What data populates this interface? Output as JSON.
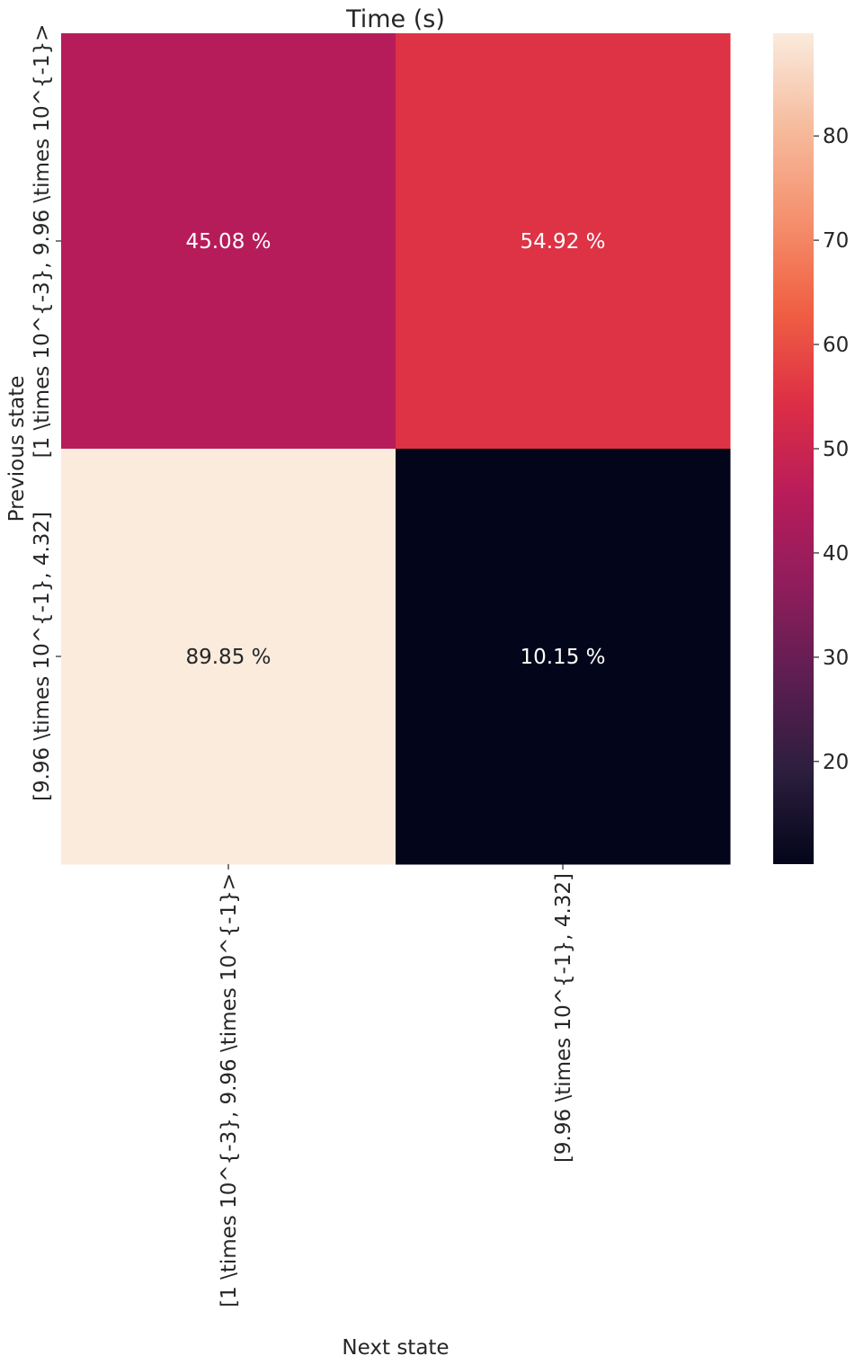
{
  "chart_data": {
    "type": "heatmap",
    "title": "Time (s)",
    "xlabel": "Next state",
    "ylabel": "Previous state",
    "x_categories": [
      "[1 \\times 10^{-3}, 9.96 \\times 10^{-1}>",
      "[9.96 \\times 10^{-1}, 4.32]"
    ],
    "y_categories": [
      "[1 \\times 10^{-3}, 9.96 \\times 10^{-1}>",
      "[9.96 \\times 10^{-1}, 4.32]"
    ],
    "values": [
      [
        45.08,
        54.92
      ],
      [
        89.85,
        10.15
      ]
    ],
    "cell_labels": [
      [
        "45.08 %",
        "54.92 %"
      ],
      [
        "89.85 %",
        "10.15 %"
      ]
    ],
    "colorbar": {
      "min": 10.15,
      "max": 89.85,
      "ticks": [
        20,
        30,
        40,
        50,
        60,
        70,
        80
      ],
      "tick_labels": [
        "20",
        "30",
        "40",
        "50",
        "60",
        "70",
        "80"
      ]
    },
    "colormap": "rocket",
    "colors": {
      "rocket_stops": [
        "#03051a",
        "#2c1e3e",
        "#5c1e51",
        "#8f1d5c",
        "#b81c5a",
        "#dd2f45",
        "#f06043",
        "#f5916e",
        "#f6bc9e",
        "#faebdd"
      ],
      "light_text": "#ffffff",
      "dark_text": "#262626"
    }
  }
}
